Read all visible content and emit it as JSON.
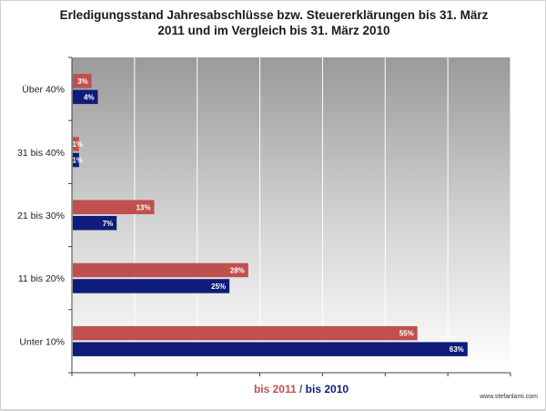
{
  "chart_data": {
    "type": "bar",
    "orientation": "horizontal",
    "title_lines": [
      "Erledigungsstand Jahresabschlüsse bzw. Steuererklärungen bis 31. März",
      "2011 und im Vergleich  bis 31. März 2010"
    ],
    "categories": [
      "Über 40%",
      "31 bis 40%",
      "21 bis 30%",
      "11 bis 20%",
      "Unter 10%"
    ],
    "series": [
      {
        "name": "bis 2011",
        "color": "#c0504d",
        "values": [
          3,
          1,
          13,
          28,
          55
        ],
        "labels": [
          "3%",
          "1%",
          "13%",
          "28%",
          "55%"
        ]
      },
      {
        "name": "bis 2010",
        "color": "#0f1c7a",
        "values": [
          4,
          1,
          7,
          25,
          63
        ],
        "labels": [
          "4%",
          "1%",
          "7%",
          "25%",
          "63%"
        ]
      }
    ],
    "xlim": [
      0,
      70
    ],
    "grid": true,
    "legend": {
      "separator": " / ",
      "placement": "bottom-center"
    }
  },
  "watermark": "www.stefanlami.com"
}
